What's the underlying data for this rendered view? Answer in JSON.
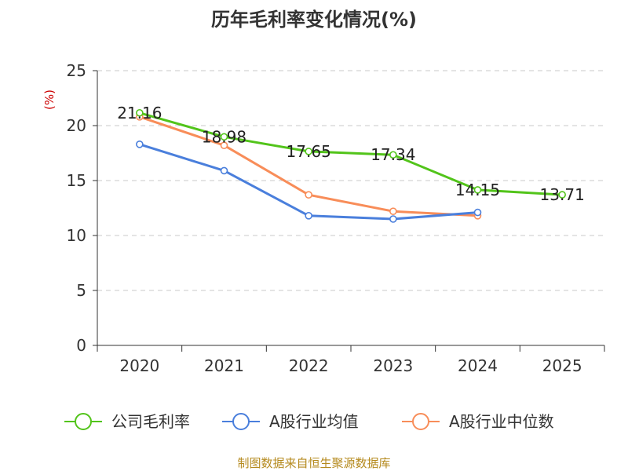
{
  "chart_data": {
    "type": "line",
    "title": "历年毛利率变化情况(%)",
    "ylabel": "(%)",
    "xlabel": "",
    "categories": [
      "2020",
      "2021",
      "2022",
      "2023",
      "2024",
      "2025"
    ],
    "ylim": [
      0,
      25
    ],
    "yticks": [
      0,
      5,
      10,
      15,
      20,
      25
    ],
    "grid": true,
    "legend_position": "bottom",
    "series": [
      {
        "name": "公司毛利率",
        "color": "#52c41a",
        "values": [
          21.16,
          18.98,
          17.65,
          17.34,
          14.15,
          13.71
        ],
        "labels": [
          "21.16",
          "18.98",
          "17.65",
          "17.34",
          "14.15",
          "13.71"
        ]
      },
      {
        "name": "A股行业均值",
        "color": "#4a7fdc",
        "values": [
          18.3,
          15.9,
          11.8,
          11.5,
          12.1,
          null
        ]
      },
      {
        "name": "A股行业中位数",
        "color": "#f88d59",
        "values": [
          20.8,
          18.2,
          13.7,
          12.2,
          11.8,
          null
        ]
      }
    ]
  },
  "source": "制图数据来自恒生聚源数据库"
}
